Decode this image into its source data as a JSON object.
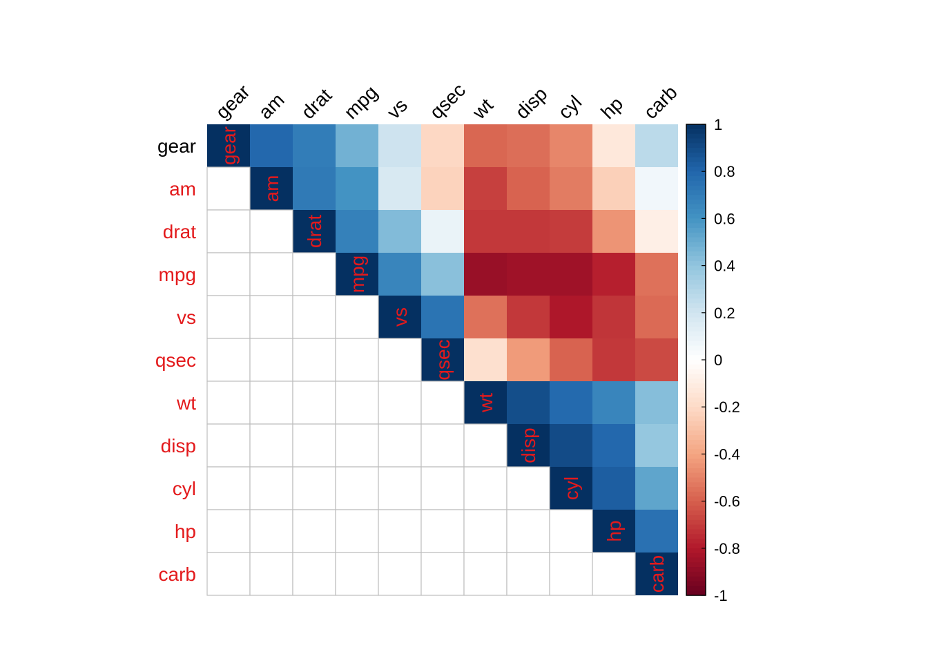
{
  "chart_data": {
    "type": "heatmap",
    "title": "",
    "variables": [
      "gear",
      "am",
      "drat",
      "mpg",
      "vs",
      "qsec",
      "wt",
      "disp",
      "cyl",
      "hp",
      "carb"
    ],
    "first_row_label_color": "#000000",
    "label_color": "#e31a1c",
    "lower_triangle": "numbers",
    "upper_triangle": "color",
    "diagonal": "variable-names",
    "matrix": [
      [
        1.0,
        0.79,
        0.7,
        0.48,
        0.21,
        -0.21,
        -0.58,
        -0.56,
        -0.49,
        -0.13,
        0.27
      ],
      [
        0.79,
        1.0,
        0.71,
        0.6,
        0.17,
        -0.23,
        -0.69,
        -0.59,
        -0.52,
        -0.24,
        0.06
      ],
      [
        0.7,
        0.71,
        1.0,
        0.68,
        0.44,
        0.09,
        -0.71,
        -0.71,
        -0.7,
        -0.45,
        -0.09
      ],
      [
        0.48,
        0.6,
        0.68,
        1.0,
        0.66,
        0.42,
        -0.87,
        -0.85,
        -0.85,
        -0.78,
        -0.55
      ],
      [
        0.21,
        0.17,
        0.44,
        0.66,
        1.0,
        0.74,
        -0.55,
        -0.71,
        -0.81,
        -0.72,
        -0.57
      ],
      [
        -0.21,
        -0.23,
        0.09,
        0.42,
        0.74,
        1.0,
        -0.17,
        -0.43,
        -0.59,
        -0.71,
        -0.66
      ],
      [
        -0.58,
        -0.69,
        -0.71,
        -0.87,
        -0.55,
        -0.17,
        1.0,
        0.89,
        0.78,
        0.66,
        0.43
      ],
      [
        -0.56,
        -0.59,
        -0.71,
        -0.85,
        -0.71,
        -0.43,
        0.89,
        1.0,
        0.9,
        0.79,
        0.39
      ],
      [
        -0.49,
        -0.52,
        -0.7,
        -0.85,
        -0.81,
        -0.59,
        0.78,
        0.9,
        1.0,
        0.83,
        0.53
      ],
      [
        -0.13,
        -0.24,
        -0.45,
        -0.78,
        -0.72,
        -0.71,
        0.66,
        0.79,
        0.83,
        1.0,
        0.75
      ],
      [
        0.27,
        0.06,
        -0.09,
        -0.55,
        -0.57,
        -0.66,
        0.43,
        0.39,
        0.53,
        0.75,
        1.0
      ]
    ],
    "color_scale": {
      "range": [
        -1,
        1
      ],
      "ticks": [
        "1",
        "0.8",
        "0.6",
        "0.4",
        "0.2",
        "0",
        "-0.2",
        "-0.4",
        "-0.6",
        "-0.8",
        "-1"
      ],
      "tick_values": [
        1,
        0.8,
        0.6,
        0.4,
        0.2,
        0,
        -0.2,
        -0.4,
        -0.6,
        -0.8,
        -1
      ],
      "palette": [
        "#67001F",
        "#B2182B",
        "#D6604D",
        "#F4A582",
        "#FDDBC7",
        "#FFFFFF",
        "#D1E5F0",
        "#92C5DE",
        "#4393C3",
        "#2166AC",
        "#053061"
      ]
    }
  }
}
